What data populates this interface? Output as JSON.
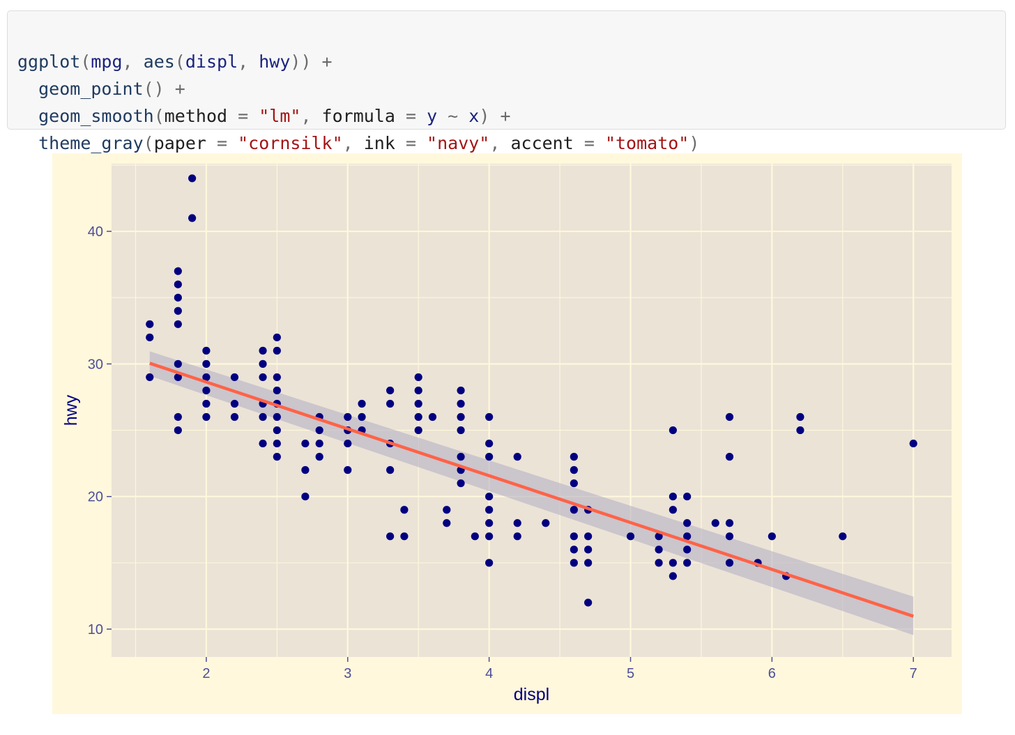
{
  "code": {
    "line1": {
      "fn": "ggplot",
      "open": "(",
      "a1": "mpg",
      "c1": ", ",
      "fn2": "aes",
      "open2": "(",
      "a2": "displ",
      "c2": ", ",
      "a3": "hwy",
      "close": "))",
      "plus": " +"
    },
    "line2": {
      "fn": "geom_point",
      "paren": "()",
      "plus": " +"
    },
    "line3": {
      "fn": "geom_smooth",
      "open": "(",
      "k1": "method",
      "eq": " = ",
      "s1": "\"lm\"",
      "c1": ", ",
      "k2": "formula",
      "eq2": " = ",
      "y": "y",
      "tilde": " ~ ",
      "x": "x",
      "close": ")",
      "plus": " +"
    },
    "line4": {
      "fn": "theme_gray",
      "open": "(",
      "k1": "paper",
      "eq1": " = ",
      "s1": "\"cornsilk\"",
      "c1": ", ",
      "k2": "ink",
      "eq2": " = ",
      "s2": "\"navy\"",
      "c2": ", ",
      "k3": "accent",
      "eq3": " = ",
      "s3": "\"tomato\"",
      "close": ")"
    }
  },
  "colors": {
    "paper": "#fff8dc",
    "panel": "#ebe3d6",
    "grid": "#fff8dc",
    "ink": "#000080",
    "tick_text": "#4d4d99",
    "accent": "#ff6347",
    "ribbon": "#b5b1c4"
  },
  "chart_data": {
    "type": "scatter",
    "xlabel": "displ",
    "ylabel": "hwy",
    "xlim": [
      1.33,
      7.27
    ],
    "ylim": [
      7.9,
      45.1
    ],
    "x_ticks": [
      2,
      3,
      4,
      5,
      6,
      7
    ],
    "y_ticks": [
      10,
      20,
      30,
      40
    ],
    "grid": true,
    "points": [
      [
        1.6,
        33
      ],
      [
        1.6,
        32
      ],
      [
        1.6,
        29
      ],
      [
        1.8,
        37
      ],
      [
        1.8,
        36
      ],
      [
        1.8,
        35
      ],
      [
        1.8,
        34
      ],
      [
        1.8,
        33
      ],
      [
        1.8,
        30
      ],
      [
        1.8,
        29
      ],
      [
        1.8,
        26
      ],
      [
        1.8,
        25
      ],
      [
        1.9,
        44
      ],
      [
        1.9,
        41
      ],
      [
        2.0,
        31
      ],
      [
        2.0,
        30
      ],
      [
        2.0,
        29
      ],
      [
        2.0,
        28
      ],
      [
        2.0,
        27
      ],
      [
        2.0,
        26
      ],
      [
        2.2,
        29
      ],
      [
        2.2,
        27
      ],
      [
        2.2,
        26
      ],
      [
        2.4,
        31
      ],
      [
        2.4,
        30
      ],
      [
        2.4,
        29
      ],
      [
        2.4,
        27
      ],
      [
        2.4,
        26
      ],
      [
        2.4,
        24
      ],
      [
        2.5,
        32
      ],
      [
        2.5,
        31
      ],
      [
        2.5,
        29
      ],
      [
        2.5,
        28
      ],
      [
        2.5,
        27
      ],
      [
        2.5,
        26
      ],
      [
        2.5,
        25
      ],
      [
        2.5,
        24
      ],
      [
        2.5,
        23
      ],
      [
        2.7,
        24
      ],
      [
        2.7,
        22
      ],
      [
        2.7,
        20
      ],
      [
        2.8,
        26
      ],
      [
        2.8,
        25
      ],
      [
        2.8,
        24
      ],
      [
        2.8,
        23
      ],
      [
        3.0,
        26
      ],
      [
        3.0,
        25
      ],
      [
        3.0,
        24
      ],
      [
        3.0,
        22
      ],
      [
        3.1,
        27
      ],
      [
        3.1,
        26
      ],
      [
        3.1,
        25
      ],
      [
        3.3,
        28
      ],
      [
        3.3,
        27
      ],
      [
        3.3,
        24
      ],
      [
        3.3,
        22
      ],
      [
        3.3,
        17
      ],
      [
        3.4,
        19
      ],
      [
        3.4,
        17
      ],
      [
        3.5,
        29
      ],
      [
        3.5,
        28
      ],
      [
        3.5,
        27
      ],
      [
        3.5,
        26
      ],
      [
        3.5,
        25
      ],
      [
        3.6,
        26
      ],
      [
        3.7,
        19
      ],
      [
        3.7,
        18
      ],
      [
        3.8,
        28
      ],
      [
        3.8,
        27
      ],
      [
        3.8,
        26
      ],
      [
        3.8,
        25
      ],
      [
        3.8,
        23
      ],
      [
        3.8,
        22
      ],
      [
        3.8,
        21
      ],
      [
        3.9,
        17
      ],
      [
        4.0,
        26
      ],
      [
        4.0,
        24
      ],
      [
        4.0,
        23
      ],
      [
        4.0,
        20
      ],
      [
        4.0,
        19
      ],
      [
        4.0,
        18
      ],
      [
        4.0,
        17
      ],
      [
        4.0,
        15
      ],
      [
        4.2,
        23
      ],
      [
        4.2,
        18
      ],
      [
        4.2,
        17
      ],
      [
        4.4,
        18
      ],
      [
        4.6,
        23
      ],
      [
        4.6,
        22
      ],
      [
        4.6,
        21
      ],
      [
        4.6,
        19
      ],
      [
        4.6,
        17
      ],
      [
        4.6,
        16
      ],
      [
        4.6,
        15
      ],
      [
        4.7,
        19
      ],
      [
        4.7,
        17
      ],
      [
        4.7,
        16
      ],
      [
        4.7,
        15
      ],
      [
        4.7,
        12
      ],
      [
        5.0,
        17
      ],
      [
        5.2,
        17
      ],
      [
        5.2,
        16
      ],
      [
        5.2,
        15
      ],
      [
        5.3,
        25
      ],
      [
        5.3,
        20
      ],
      [
        5.3,
        19
      ],
      [
        5.3,
        15
      ],
      [
        5.3,
        14
      ],
      [
        5.4,
        20
      ],
      [
        5.4,
        18
      ],
      [
        5.4,
        17
      ],
      [
        5.4,
        16
      ],
      [
        5.4,
        15
      ],
      [
        5.6,
        18
      ],
      [
        5.7,
        26
      ],
      [
        5.7,
        23
      ],
      [
        5.7,
        18
      ],
      [
        5.7,
        17
      ],
      [
        5.7,
        15
      ],
      [
        5.9,
        15
      ],
      [
        6.0,
        17
      ],
      [
        6.1,
        14
      ],
      [
        6.2,
        26
      ],
      [
        6.2,
        25
      ],
      [
        6.5,
        17
      ],
      [
        7.0,
        24
      ]
    ],
    "smooth": {
      "method": "lm",
      "x": [
        1.6,
        7.0
      ],
      "fit": [
        30.05,
        10.97
      ],
      "lower": [
        29.1,
        9.55
      ],
      "upper": [
        30.95,
        12.45
      ]
    }
  }
}
